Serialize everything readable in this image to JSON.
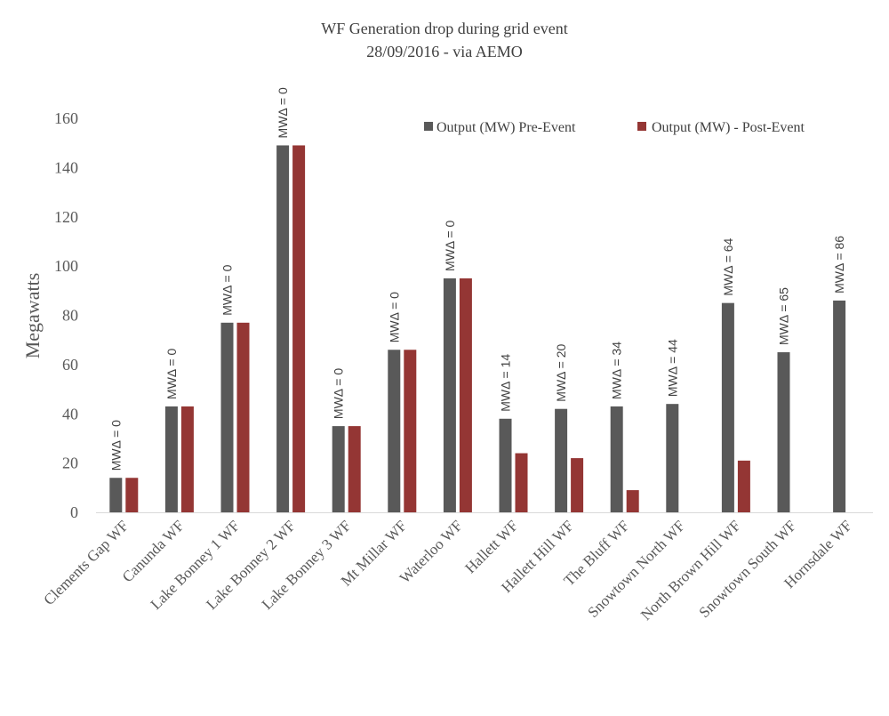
{
  "chart_data": {
    "type": "bar",
    "title": "WF Generation drop during grid event",
    "subtitle": "28/09/2016 - via AEMO",
    "xlabel": "",
    "ylabel": "Megawatts",
    "ylim": [
      0,
      160
    ],
    "yticks": [
      0,
      20,
      40,
      60,
      80,
      100,
      120,
      140,
      160
    ],
    "grid": false,
    "legend_position": "top-right",
    "categories": [
      "Clements Gap WF",
      "Canunda WF",
      "Lake Bonney 1 WF",
      "Lake Bonney 2 WF",
      "Lake Bonney 3 WF",
      "Mt Millar WF",
      "Waterloo WF",
      "Hallett WF",
      "Hallett Hill WF",
      "The Bluff WF",
      "Snowtown North WF",
      "North Brown Hill WF",
      "Snowtown South WF",
      "Hornsdale WF"
    ],
    "series": [
      {
        "name": "Output (MW) Pre-Event",
        "color": "#595959",
        "values": [
          14,
          43,
          77,
          149,
          35,
          66,
          95,
          38,
          42,
          43,
          44,
          85,
          65,
          86
        ]
      },
      {
        "name": "Output (MW) - Post-Event",
        "color": "#943634",
        "values": [
          14,
          43,
          77,
          149,
          35,
          66,
          95,
          24,
          22,
          9,
          0,
          21,
          0,
          0
        ]
      }
    ],
    "data_labels": [
      "MWΔ = 0",
      "MWΔ = 0",
      "MWΔ = 0",
      "MWΔ = 0",
      "MWΔ = 0",
      "MWΔ = 0",
      "MWΔ = 0",
      "MWΔ = 14",
      "MWΔ = 20",
      "MWΔ = 34",
      "MWΔ = 44",
      "MWΔ = 64",
      "MWΔ = 65",
      "MWΔ = 86"
    ]
  }
}
